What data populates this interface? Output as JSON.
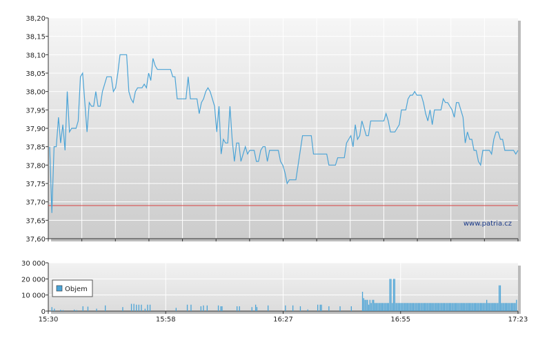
{
  "watermark": "www.patria.cz",
  "chart_data": [
    {
      "type": "line",
      "title": "",
      "ylim": [
        37.6,
        38.2
      ],
      "yticks": [
        "38,20",
        "38,15",
        "38,10",
        "38,05",
        "38,00",
        "37,95",
        "37,90",
        "37,85",
        "37,80",
        "37,75",
        "37,70",
        "37,65",
        "37,60"
      ],
      "reference_line": 37.69,
      "colors": {
        "line": "#4aa3d6",
        "reference": "#d94040"
      },
      "grid": true,
      "series": [
        {
          "values": [
            37.85,
            37.67,
            37.85,
            37.85,
            37.93,
            37.86,
            37.91,
            37.84,
            38.0,
            37.89,
            37.9,
            37.9,
            37.9,
            37.92,
            38.04,
            38.05,
            37.97,
            37.89,
            37.97,
            37.96,
            37.96,
            38.0,
            37.96,
            37.96,
            38.0,
            38.02,
            38.04,
            38.04,
            38.04,
            38.0,
            38.01,
            38.05,
            38.1,
            38.1,
            38.1,
            38.1,
            38.0,
            37.98,
            37.97,
            38.0,
            38.01,
            38.01,
            38.01,
            38.02,
            38.01,
            38.05,
            38.03,
            38.09,
            38.07,
            38.06,
            38.06,
            38.06,
            38.06,
            38.06,
            38.06,
            38.06,
            38.04,
            38.04,
            37.98,
            37.98,
            37.98,
            37.98,
            37.98,
            38.04,
            37.98,
            37.98,
            37.98,
            37.98,
            37.94,
            37.97,
            37.98,
            38.0,
            38.01,
            38.0,
            37.98,
            37.96,
            37.89,
            37.96,
            37.83,
            37.87,
            37.86,
            37.86,
            37.96,
            37.87,
            37.81,
            37.86,
            37.86,
            37.81,
            37.83,
            37.85,
            37.83,
            37.84,
            37.84,
            37.84,
            37.81,
            37.81,
            37.84,
            37.85,
            37.85,
            37.81,
            37.84,
            37.84,
            37.84,
            37.84,
            37.84,
            37.81,
            37.8,
            37.78,
            37.75,
            37.76,
            37.76,
            37.76,
            37.76,
            37.8,
            37.84,
            37.88,
            37.88,
            37.88,
            37.88,
            37.88,
            37.83,
            37.83,
            37.83,
            37.83,
            37.83,
            37.83,
            37.83,
            37.8,
            37.8,
            37.8,
            37.8,
            37.82,
            37.82,
            37.82,
            37.82,
            37.86,
            37.87,
            37.88,
            37.85,
            37.91,
            37.87,
            37.88,
            37.92,
            37.9,
            37.88,
            37.88,
            37.92,
            37.92,
            37.92,
            37.92,
            37.92,
            37.92,
            37.92,
            37.94,
            37.92,
            37.89,
            37.89,
            37.89,
            37.9,
            37.91,
            37.95,
            37.95,
            37.95,
            37.98,
            37.99,
            37.99,
            38.0,
            37.99,
            37.99,
            37.99,
            37.97,
            37.94,
            37.92,
            37.95,
            37.91,
            37.95,
            37.95,
            37.95,
            37.95,
            37.98,
            37.97,
            37.97,
            37.96,
            37.95,
            37.93,
            37.97,
            37.97,
            37.95,
            37.93,
            37.86,
            37.89,
            37.87,
            37.87,
            37.84,
            37.84,
            37.81,
            37.8,
            37.84,
            37.84,
            37.84,
            37.84,
            37.83,
            37.87,
            37.89,
            37.89,
            37.87,
            37.87,
            37.84,
            37.84,
            37.84,
            37.84,
            37.84,
            37.83,
            37.84
          ]
        }
      ]
    },
    {
      "type": "bar",
      "title": "",
      "ylim": [
        0,
        30000
      ],
      "yticks": [
        "30 000",
        "20 000",
        "10 000",
        "0"
      ],
      "xticks": [
        "15:30",
        "15:58",
        "16:27",
        "16:55",
        "17:23"
      ],
      "legend": [
        "Objem"
      ],
      "legend_position": "left",
      "colors": {
        "bar": "#4aa3d6"
      },
      "grid": true,
      "series": [
        {
          "name": "Objem",
          "values": [
            0,
            0,
            2500,
            0,
            1500,
            0,
            0,
            0,
            0,
            800,
            0,
            600,
            0,
            0,
            0,
            0,
            0,
            0,
            0,
            0,
            900,
            0,
            600,
            0,
            0,
            0,
            0,
            3000,
            0,
            0,
            0,
            2800,
            0,
            0,
            0,
            0,
            0,
            0,
            1500,
            0,
            0,
            0,
            0,
            0,
            0,
            3500,
            0,
            0,
            0,
            0,
            0,
            0,
            0,
            0,
            0,
            0,
            0,
            0,
            0,
            2500,
            0,
            0,
            0,
            0,
            0,
            0,
            4500,
            0,
            4500,
            0,
            4000,
            0,
            4000,
            0,
            4000,
            0,
            0,
            1500,
            0,
            4000,
            0,
            4000,
            0,
            0,
            0,
            0,
            0,
            0,
            0,
            0,
            0,
            0,
            0,
            0,
            0,
            0,
            0,
            0,
            0,
            0,
            0,
            0,
            2000,
            0,
            0,
            0,
            0,
            0,
            0,
            0,
            0,
            4000,
            0,
            0,
            4000,
            0,
            0,
            0,
            0,
            0,
            0,
            0,
            3000,
            0,
            3500,
            0,
            0,
            3500,
            0,
            0,
            0,
            0,
            0,
            0,
            0,
            0,
            3500,
            0,
            3000,
            3000,
            0,
            0,
            0,
            0,
            0,
            0,
            0,
            0,
            0,
            0,
            0,
            3000,
            0,
            3000,
            0,
            0,
            0,
            0,
            0,
            0,
            0,
            0,
            0,
            2500,
            0,
            0,
            4000,
            2500,
            0,
            0,
            0,
            0,
            0,
            0,
            0,
            0,
            3500,
            0,
            0,
            0,
            0,
            0,
            0,
            0,
            0,
            0,
            0,
            0,
            0,
            0,
            3500,
            0,
            0,
            0,
            0,
            0,
            3500,
            0,
            0,
            0,
            0,
            0,
            3000,
            0,
            0,
            0,
            0,
            0,
            1000,
            0,
            0,
            0,
            0,
            0,
            0,
            0,
            4000,
            0,
            4000,
            4000,
            0,
            0,
            0,
            0,
            0,
            3000,
            0,
            0,
            0,
            0,
            0,
            0,
            0,
            0,
            3000,
            0,
            0,
            0,
            0,
            0,
            0,
            0,
            0,
            3000,
            0,
            0,
            0,
            0,
            0,
            0,
            0,
            0,
            12000,
            8000,
            7000,
            7000,
            7000,
            4000,
            7000,
            5000,
            7000,
            7000,
            5000,
            5000,
            5000,
            5000,
            5000,
            5000,
            5000,
            5000,
            5000,
            5000,
            5000,
            5000,
            20000,
            20000,
            5000,
            20000,
            20000,
            5000,
            5000,
            5000,
            5000,
            5000,
            5000,
            5000,
            5000,
            5000,
            5000,
            5000,
            5000,
            5000,
            5000,
            5000,
            5000,
            5000,
            5000,
            5000,
            5000,
            5000,
            5000,
            5000,
            5000,
            5000,
            5000,
            5000,
            5000,
            5000,
            5000,
            5000,
            5000,
            5000,
            5000,
            5000,
            5000,
            5000,
            5000,
            5000,
            5000,
            5000,
            5000,
            5000,
            5000,
            5000,
            5000,
            5000,
            5000,
            5000,
            5000,
            5000,
            5000,
            5000,
            5000,
            5000,
            5000,
            5000,
            5000,
            5000,
            5000,
            5000,
            5000,
            5000,
            5000,
            5000,
            5000,
            5000,
            5000,
            5000,
            5000,
            5000,
            5000,
            5000,
            7000,
            5000,
            5000,
            5000,
            5000,
            5000,
            5000,
            5000,
            5000,
            5000,
            16000,
            16000,
            5000,
            5000,
            5000,
            5000,
            5000,
            5000,
            5000,
            5000,
            5000,
            5000,
            5000,
            5000,
            7000
          ]
        }
      ]
    }
  ]
}
